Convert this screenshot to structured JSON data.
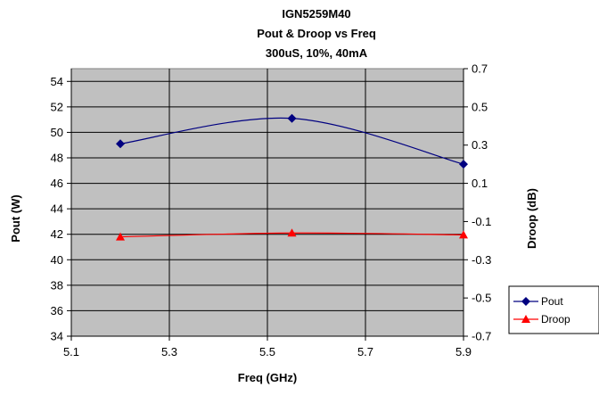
{
  "chart_data": {
    "type": "line",
    "title": [
      "IGN5259M40",
      "Pout & Droop vs Freq",
      "300uS, 10%, 40mA"
    ],
    "xlabel": "Freq (GHz)",
    "ylabel": "Pout (W)",
    "y2label": "Droop (dB)",
    "xlim": [
      5.1,
      5.9
    ],
    "xticks": [
      "5.1",
      "5.3",
      "5.5",
      "5.7",
      "5.9"
    ],
    "ylim": [
      34,
      55
    ],
    "yticks": [
      "34",
      "36",
      "38",
      "40",
      "42",
      "44",
      "46",
      "48",
      "50",
      "52",
      "54"
    ],
    "y2lim": [
      -0.7,
      0.7
    ],
    "y2ticks": [
      "-0.7",
      "-0.5",
      "-0.3",
      "-0.1",
      "0.1",
      "0.3",
      "0.5",
      "0.7"
    ],
    "grid": true,
    "plot_background": "#c0c0c0",
    "legend_position": "right",
    "series": [
      {
        "name": "Pout",
        "axis": "left",
        "color": "#000080",
        "marker": "diamond",
        "x": [
          5.2,
          5.55,
          5.9
        ],
        "values": [
          49.1,
          51.1,
          47.5
        ]
      },
      {
        "name": "Droop",
        "axis": "right",
        "color": "#ff0000",
        "marker": "triangle",
        "x": [
          5.2,
          5.55,
          5.9
        ],
        "values": [
          -0.18,
          -0.16,
          -0.17
        ]
      }
    ]
  }
}
